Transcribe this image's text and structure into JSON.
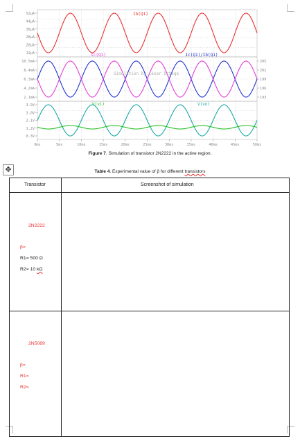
{
  "chart": {
    "watermark": "Simulation by César Ortega",
    "panel1": {
      "trace_label": "Ib(Q1)",
      "y_ticks": [
        "52µA",
        "44µA",
        "36µA",
        "28µA",
        "20µA",
        "12µA"
      ]
    },
    "panel2": {
      "trace_labels": [
        "Ic(Q1)",
        "Ic(Q1)/Ib(Q1)"
      ],
      "y_ticks_left": [
        "10.5mA",
        "8.4mA",
        "6.3mA",
        "4.2mA",
        "2.1mA"
      ],
      "y_ticks_right": [
        "205",
        "202",
        "199",
        "196",
        "193"
      ]
    },
    "panel3": {
      "trace_labels": [
        "V(vi)",
        "V(vo)"
      ],
      "y_ticks": [
        "3.9V",
        "3.0V",
        "2.1V",
        "1.2V",
        "0.3V"
      ]
    },
    "x_ticks": [
      "0ms",
      "5ms",
      "10ms",
      "15ms",
      "20ms",
      "25ms",
      "30ms",
      "35ms",
      "40ms",
      "45ms",
      "50ms"
    ],
    "colors": {
      "ib": "#e8302e",
      "ic": "#e03ad6",
      "ratio": "#1e2fd0",
      "vi": "#1fbf1f",
      "vo": "#1aa7a7"
    }
  },
  "chart_data": [
    {
      "type": "line",
      "x": [
        0,
        5,
        10,
        15,
        20,
        25,
        30,
        35,
        40,
        45,
        50
      ],
      "x_unit": "ms",
      "series": [
        {
          "name": "Ib(Q1)",
          "values": [
            32,
            12,
            52,
            12,
            52,
            12,
            52,
            12,
            52,
            12,
            52
          ]
        }
      ],
      "ylim": [
        12,
        52
      ]
    },
    {
      "type": "line",
      "x": [
        0,
        5,
        10,
        15,
        20,
        25,
        30,
        35,
        40,
        45,
        50
      ],
      "x_unit": "ms",
      "series": [
        {
          "name": "Ic(Q1)",
          "values": [
            6.3,
            2.1,
            10.5,
            2.1,
            10.5,
            2.1,
            10.5,
            2.1,
            10.5,
            2.1,
            10.5
          ]
        },
        {
          "name": "Ic(Q1)/Ib(Q1)",
          "values": [
            199,
            205,
            193,
            205,
            193,
            205,
            193,
            205,
            193,
            205,
            193
          ]
        }
      ]
    },
    {
      "type": "line",
      "x": [
        0,
        5,
        10,
        15,
        20,
        25,
        30,
        35,
        40,
        45,
        50
      ],
      "x_unit": "ms",
      "series": [
        {
          "name": "V(vi)",
          "values": [
            1.3,
            1.1,
            1.5,
            1.1,
            1.5,
            1.1,
            1.5,
            1.1,
            1.5,
            1.1,
            1.5
          ]
        },
        {
          "name": "V(vo)",
          "values": [
            2.1,
            3.9,
            0.3,
            3.9,
            0.3,
            3.9,
            0.3,
            3.9,
            0.3,
            3.9,
            0.3
          ]
        }
      ]
    }
  ],
  "figure_caption": {
    "label": "Figure 7",
    "text": ". Simulation of transistor 2N2222 in the active region."
  },
  "table_caption": {
    "prefix": "Table 4",
    "text_main": ". Experimental value of β for different ",
    "text_wavy": "transistors"
  },
  "table": {
    "headers": [
      "Transistor",
      "Screenshot of simulation"
    ],
    "rows": [
      {
        "name": "2N2222",
        "beta": "β=",
        "r1": "R1= 500 Ω",
        "r2_prefix": "R2= 10 ",
        "r2_wavy": "kΩ"
      },
      {
        "name": "2N5089",
        "beta": "β=",
        "r1": "R1=",
        "r2": "R2="
      }
    ]
  }
}
